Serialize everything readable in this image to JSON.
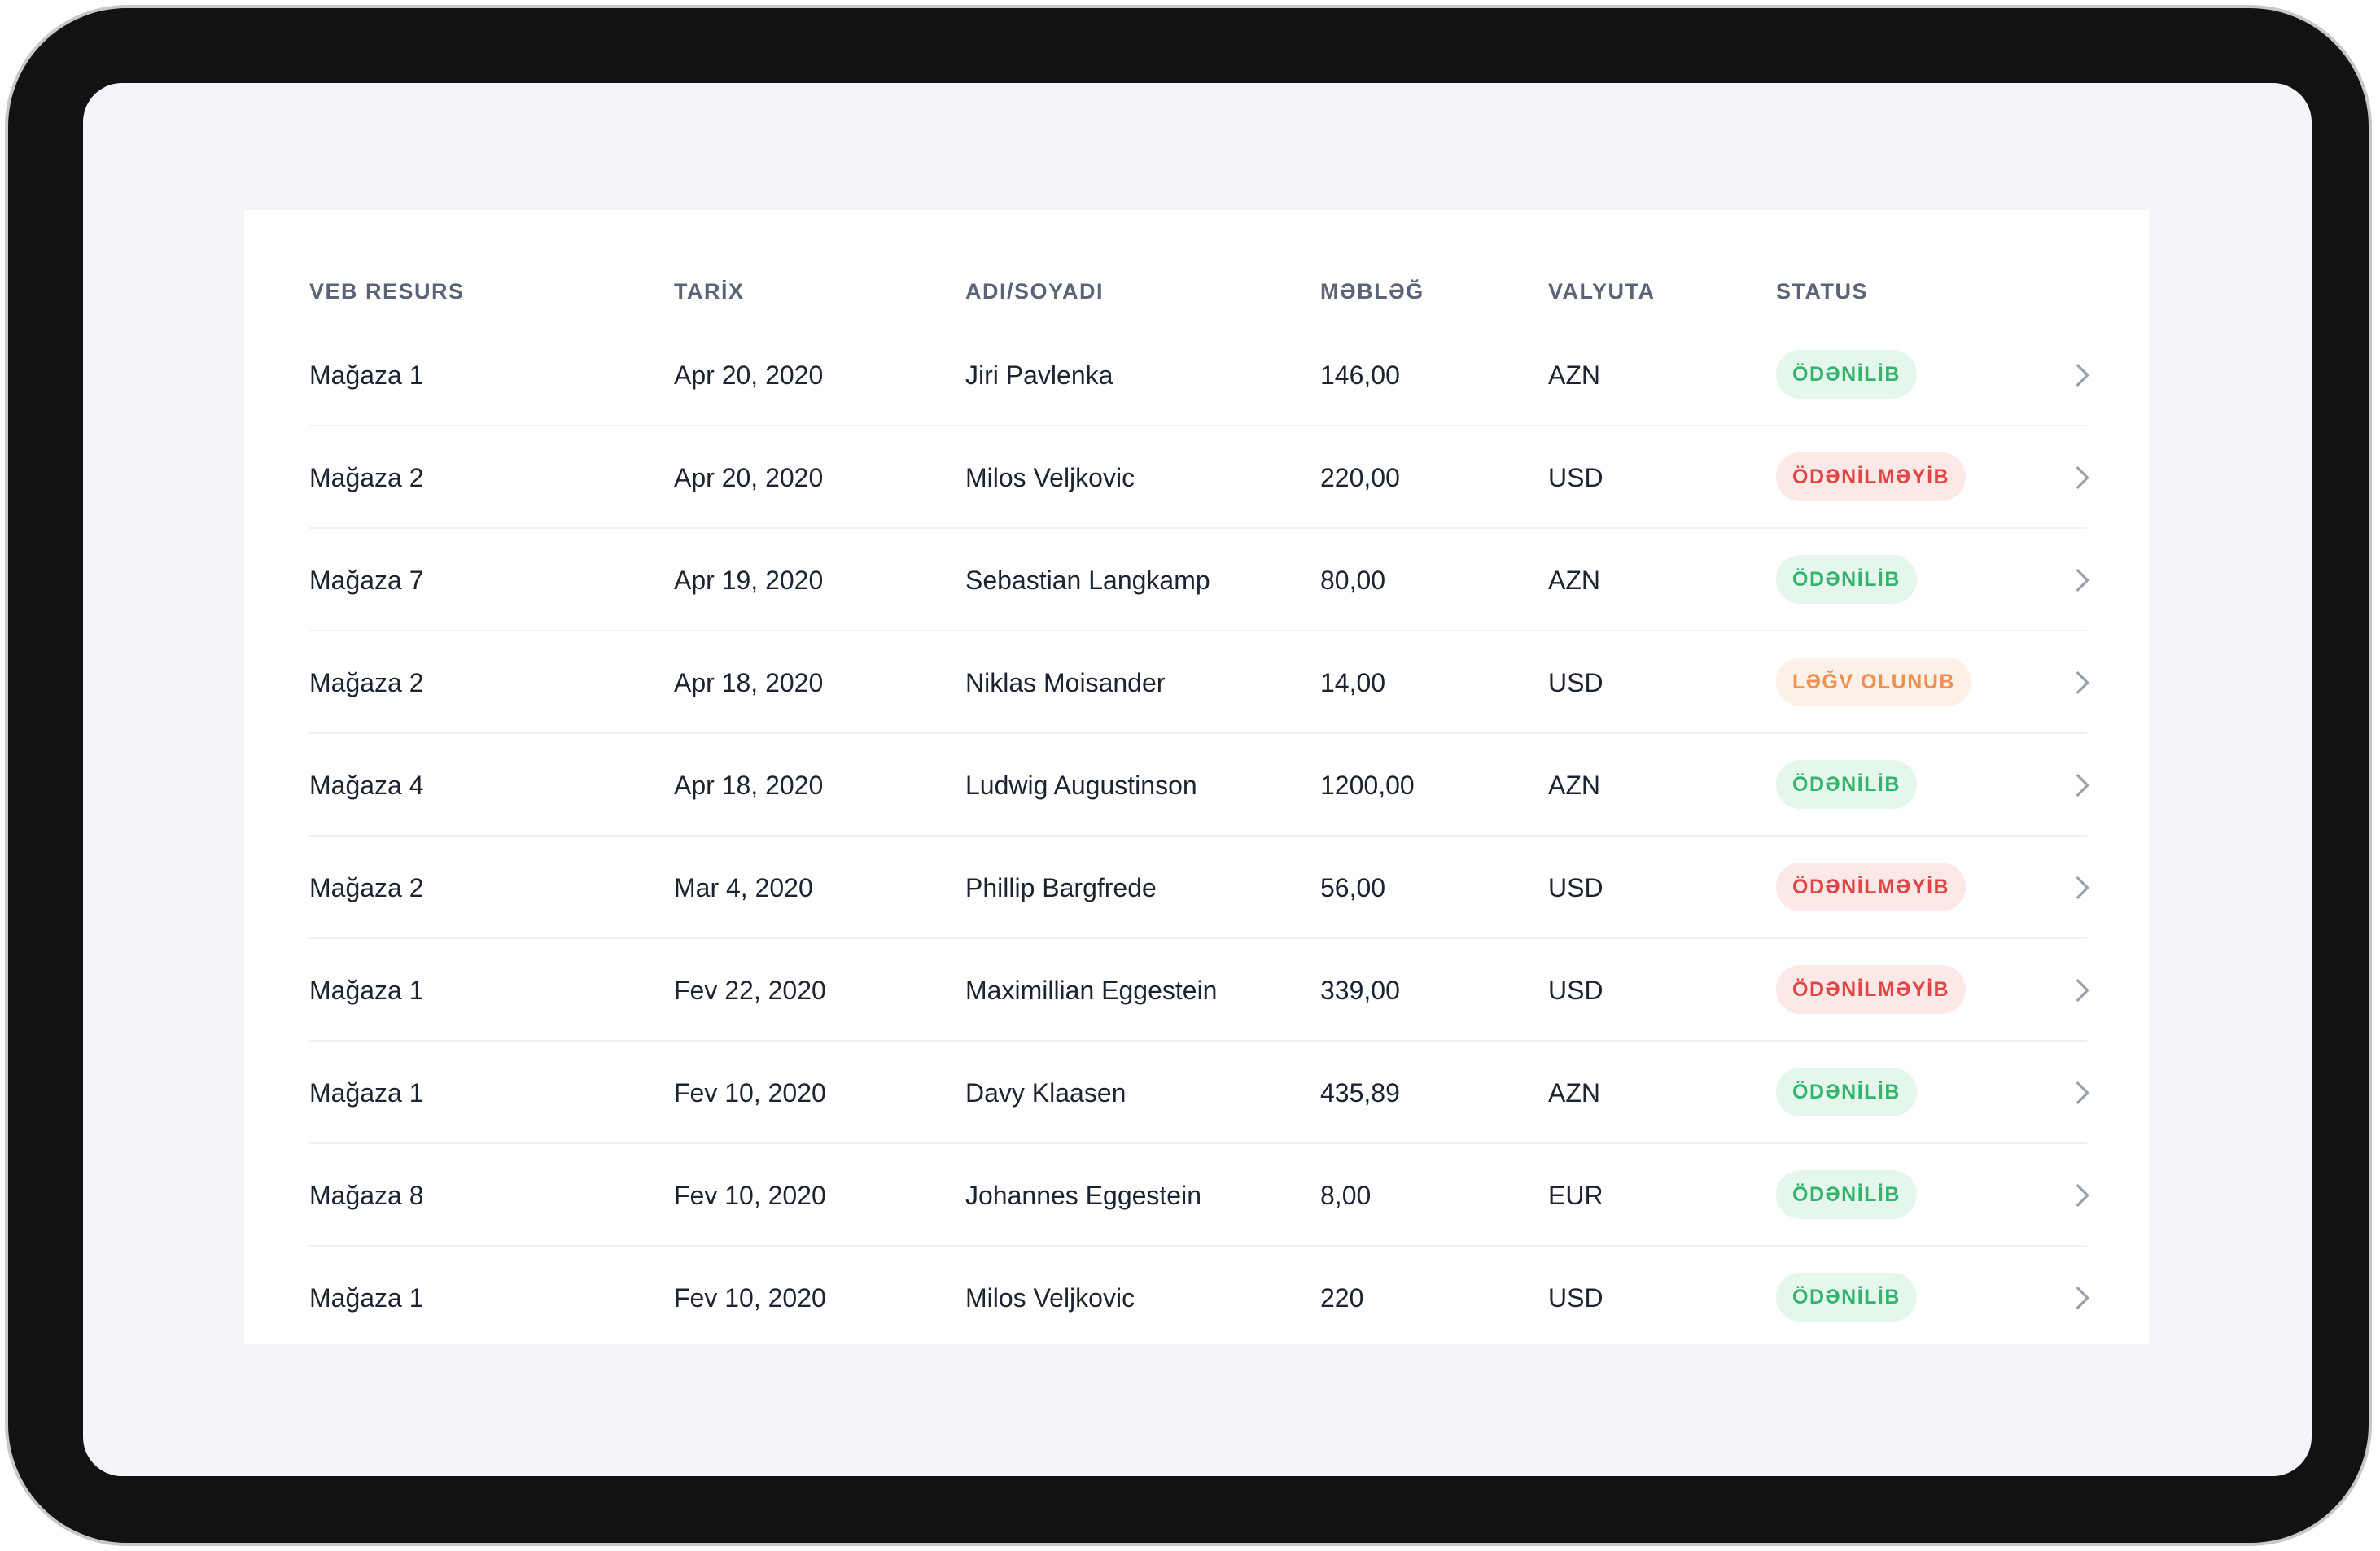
{
  "colors": {
    "paid_bg": "#e5f7ec",
    "paid_text": "#33b36b",
    "unpaid_bg": "#fde8e8",
    "unpaid_text": "#e04646",
    "cancel_bg": "#fdf1e7",
    "cancel_text": "#ef8f52"
  },
  "table": {
    "headers": [
      "VEB RESURS",
      "TARİX",
      "ADI/SOYADI",
      "MƏBLƏĞ",
      "VALYUTA",
      "STATUS"
    ],
    "rows": [
      {
        "source": "Mağaza 1",
        "date": "Apr 20, 2020",
        "name": "Jiri Pavlenka",
        "amount": "146,00",
        "currency": "AZN",
        "status": "ÖDƏNİLİB",
        "status_type": "paid"
      },
      {
        "source": "Mağaza 2",
        "date": "Apr 20, 2020",
        "name": "Milos Veljkovic",
        "amount": "220,00",
        "currency": "USD",
        "status": "ÖDƏNİLMƏYİB",
        "status_type": "unpaid"
      },
      {
        "source": "Mağaza 7",
        "date": "Apr 19, 2020",
        "name": "Sebastian Langkamp",
        "amount": "80,00",
        "currency": "AZN",
        "status": "ÖDƏNİLİB",
        "status_type": "paid"
      },
      {
        "source": "Mağaza 2",
        "date": "Apr 18, 2020",
        "name": "Niklas Moisander",
        "amount": "14,00",
        "currency": "USD",
        "status": "LƏĞV OLUNUB",
        "status_type": "cancel"
      },
      {
        "source": "Mağaza 4",
        "date": "Apr 18, 2020",
        "name": "Ludwig Augustinson",
        "amount": "1200,00",
        "currency": "AZN",
        "status": "ÖDƏNİLİB",
        "status_type": "paid"
      },
      {
        "source": "Mağaza 2",
        "date": "Mar 4, 2020",
        "name": "Phillip Bargfrede",
        "amount": "56,00",
        "currency": "USD",
        "status": "ÖDƏNİLMƏYİB",
        "status_type": "unpaid"
      },
      {
        "source": "Mağaza 1",
        "date": "Fev 22, 2020",
        "name": "Maximillian Eggestein",
        "amount": "339,00",
        "currency": "USD",
        "status": "ÖDƏNİLMƏYİB",
        "status_type": "unpaid"
      },
      {
        "source": "Mağaza 1",
        "date": "Fev 10, 2020",
        "name": "Davy Klaasen",
        "amount": "435,89",
        "currency": "AZN",
        "status": "ÖDƏNİLİB",
        "status_type": "paid"
      },
      {
        "source": "Mağaza 8",
        "date": "Fev 10, 2020",
        "name": "Johannes Eggestein",
        "amount": "8,00",
        "currency": "EUR",
        "status": "ÖDƏNİLİB",
        "status_type": "paid"
      },
      {
        "source": "Mağaza 1",
        "date": "Fev 10, 2020",
        "name": "Milos Veljkovic",
        "amount": "220",
        "currency": "USD",
        "status": "ÖDƏNİLİB",
        "status_type": "paid"
      }
    ],
    "row_action_icon": "chevron-right-icon"
  }
}
